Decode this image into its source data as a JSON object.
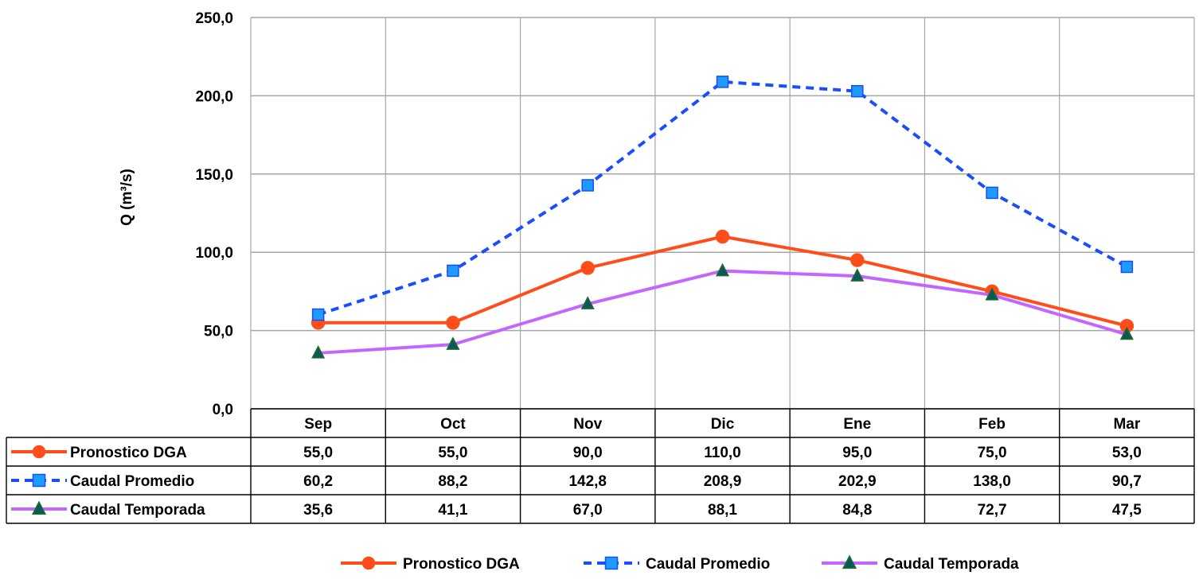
{
  "chart_data": {
    "type": "line",
    "ylabel": "Q (m³/s)",
    "ylim": [
      0,
      250
    ],
    "yticks": [
      "0,0",
      "50,0",
      "100,0",
      "150,0",
      "200,0",
      "250,0"
    ],
    "grid": true,
    "legend_placement": "bottom-center",
    "categories": [
      "Sep",
      "Oct",
      "Nov",
      "Dic",
      "Ene",
      "Feb",
      "Mar"
    ],
    "series": [
      {
        "name": "Pronostico DGA",
        "color": "#FF4D1A",
        "marker": "circle",
        "line": "solid",
        "values": [
          55.0,
          55.0,
          90.0,
          110.0,
          95.0,
          75.0,
          53.0
        ],
        "labels": [
          "55,0",
          "55,0",
          "90,0",
          "110,0",
          "95,0",
          "75,0",
          "53,0"
        ]
      },
      {
        "name": "Caudal Promedio",
        "color": "#1A4DFF",
        "marker_color": "#1E9BFF",
        "marker": "square",
        "line": "dashed",
        "values": [
          60.2,
          88.2,
          142.8,
          208.9,
          202.9,
          138.0,
          90.7
        ],
        "labels": [
          "60,2",
          "88,2",
          "142,8",
          "208,9",
          "202,9",
          "138,0",
          "90,7"
        ]
      },
      {
        "name": "Caudal Temporada",
        "color": "#C266FF",
        "marker_color": "#1F6B2E",
        "marker_fill": "#0B5A5A",
        "marker": "triangle",
        "line": "solid",
        "values": [
          35.6,
          41.1,
          67.0,
          88.1,
          84.8,
          72.7,
          47.5
        ],
        "labels": [
          "35,6",
          "41,1",
          "67,0",
          "88,1",
          "84,8",
          "72,7",
          "47,5"
        ]
      }
    ]
  }
}
